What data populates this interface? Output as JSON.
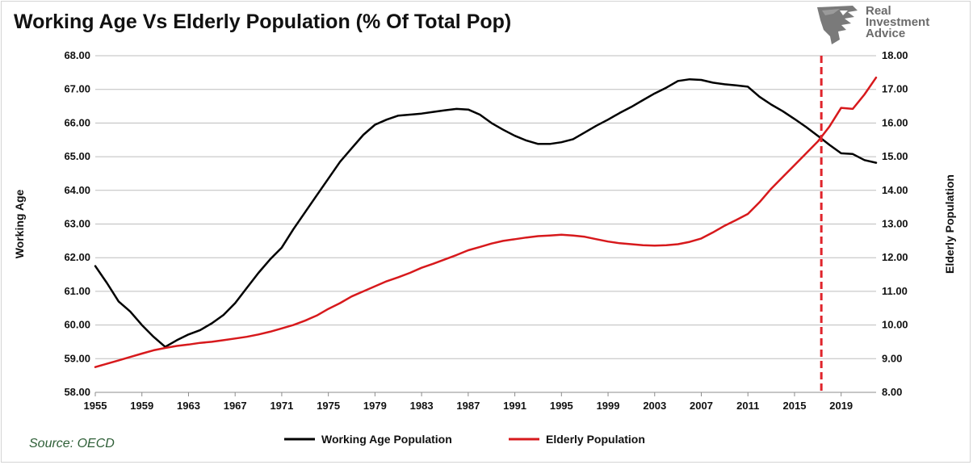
{
  "header": {
    "title": "Working Age Vs Elderly Population (% Of Total Pop)"
  },
  "logo": {
    "icon": "eagle-head-icon",
    "lines": [
      "Real",
      "Investment",
      "Advice"
    ]
  },
  "source": "Source: OECD",
  "chart_data": {
    "type": "line",
    "title": "Working Age Vs Elderly Population (% Of Total Pop)",
    "ylabel": "Working Age",
    "y2label": "Elderly Population",
    "ylim": [
      58,
      68
    ],
    "y2lim": [
      8,
      18
    ],
    "xlim": [
      1955,
      2022
    ],
    "x_ticks": [
      "1955",
      "1959",
      "1963",
      "1967",
      "1971",
      "1975",
      "1979",
      "1983",
      "1987",
      "1991",
      "1995",
      "1999",
      "2003",
      "2007",
      "2011",
      "2015",
      "2019"
    ],
    "y_ticks": [
      "58.00",
      "59.00",
      "60.00",
      "61.00",
      "62.00",
      "63.00",
      "64.00",
      "65.00",
      "66.00",
      "67.00",
      "68.00"
    ],
    "y2_ticks": [
      "8.00",
      "9.00",
      "10.00",
      "11.00",
      "12.00",
      "13.00",
      "14.00",
      "15.00",
      "16.00",
      "17.00",
      "18.00"
    ],
    "grid": "horizontal",
    "legend_position": "bottom",
    "reference_line": {
      "x": 2017.3,
      "style": "dashed",
      "color": "#e0242b"
    },
    "x": [
      1955,
      1956,
      1957,
      1958,
      1959,
      1960,
      1961,
      1962,
      1963,
      1964,
      1965,
      1966,
      1967,
      1968,
      1969,
      1970,
      1971,
      1972,
      1973,
      1974,
      1975,
      1976,
      1977,
      1978,
      1979,
      1980,
      1981,
      1982,
      1983,
      1984,
      1985,
      1986,
      1987,
      1988,
      1989,
      1990,
      1991,
      1992,
      1993,
      1994,
      1995,
      1996,
      1997,
      1998,
      1999,
      2000,
      2001,
      2002,
      2003,
      2004,
      2005,
      2006,
      2007,
      2008,
      2009,
      2010,
      2011,
      2012,
      2013,
      2014,
      2015,
      2016,
      2017,
      2018,
      2019,
      2020,
      2021,
      2022
    ],
    "series": [
      {
        "name": "Working Age Population",
        "axis": "left",
        "color": "#000000",
        "values": [
          61.75,
          61.25,
          60.7,
          60.4,
          60.0,
          59.65,
          59.35,
          59.55,
          59.72,
          59.85,
          60.05,
          60.3,
          60.65,
          61.1,
          61.55,
          61.95,
          62.3,
          62.85,
          63.35,
          63.85,
          64.35,
          64.85,
          65.25,
          65.65,
          65.95,
          66.1,
          66.22,
          66.25,
          66.28,
          66.33,
          66.38,
          66.42,
          66.4,
          66.25,
          66.0,
          65.8,
          65.62,
          65.48,
          65.38,
          65.38,
          65.43,
          65.52,
          65.72,
          65.92,
          66.1,
          66.3,
          66.48,
          66.68,
          66.88,
          67.05,
          67.25,
          67.3,
          67.28,
          67.2,
          67.15,
          67.12,
          67.08,
          66.78,
          66.55,
          66.35,
          66.12,
          65.88,
          65.62,
          65.35,
          65.1,
          65.08,
          64.9,
          64.82
        ]
      },
      {
        "name": "Elderly Population",
        "axis": "right",
        "color": "#d7191c",
        "values": [
          8.75,
          8.85,
          8.95,
          9.05,
          9.15,
          9.25,
          9.32,
          9.38,
          9.42,
          9.47,
          9.5,
          9.55,
          9.6,
          9.65,
          9.72,
          9.8,
          9.9,
          10.0,
          10.13,
          10.28,
          10.48,
          10.65,
          10.85,
          11.0,
          11.15,
          11.3,
          11.42,
          11.55,
          11.7,
          11.82,
          11.95,
          12.08,
          12.22,
          12.32,
          12.42,
          12.5,
          12.55,
          12.6,
          12.64,
          12.66,
          12.68,
          12.66,
          12.62,
          12.55,
          12.48,
          12.43,
          12.4,
          12.37,
          12.36,
          12.37,
          12.4,
          12.47,
          12.57,
          12.75,
          12.95,
          13.12,
          13.3,
          13.65,
          14.05,
          14.4,
          14.75,
          15.1,
          15.45,
          15.9,
          16.45,
          16.42,
          16.85,
          17.35
        ]
      }
    ]
  }
}
